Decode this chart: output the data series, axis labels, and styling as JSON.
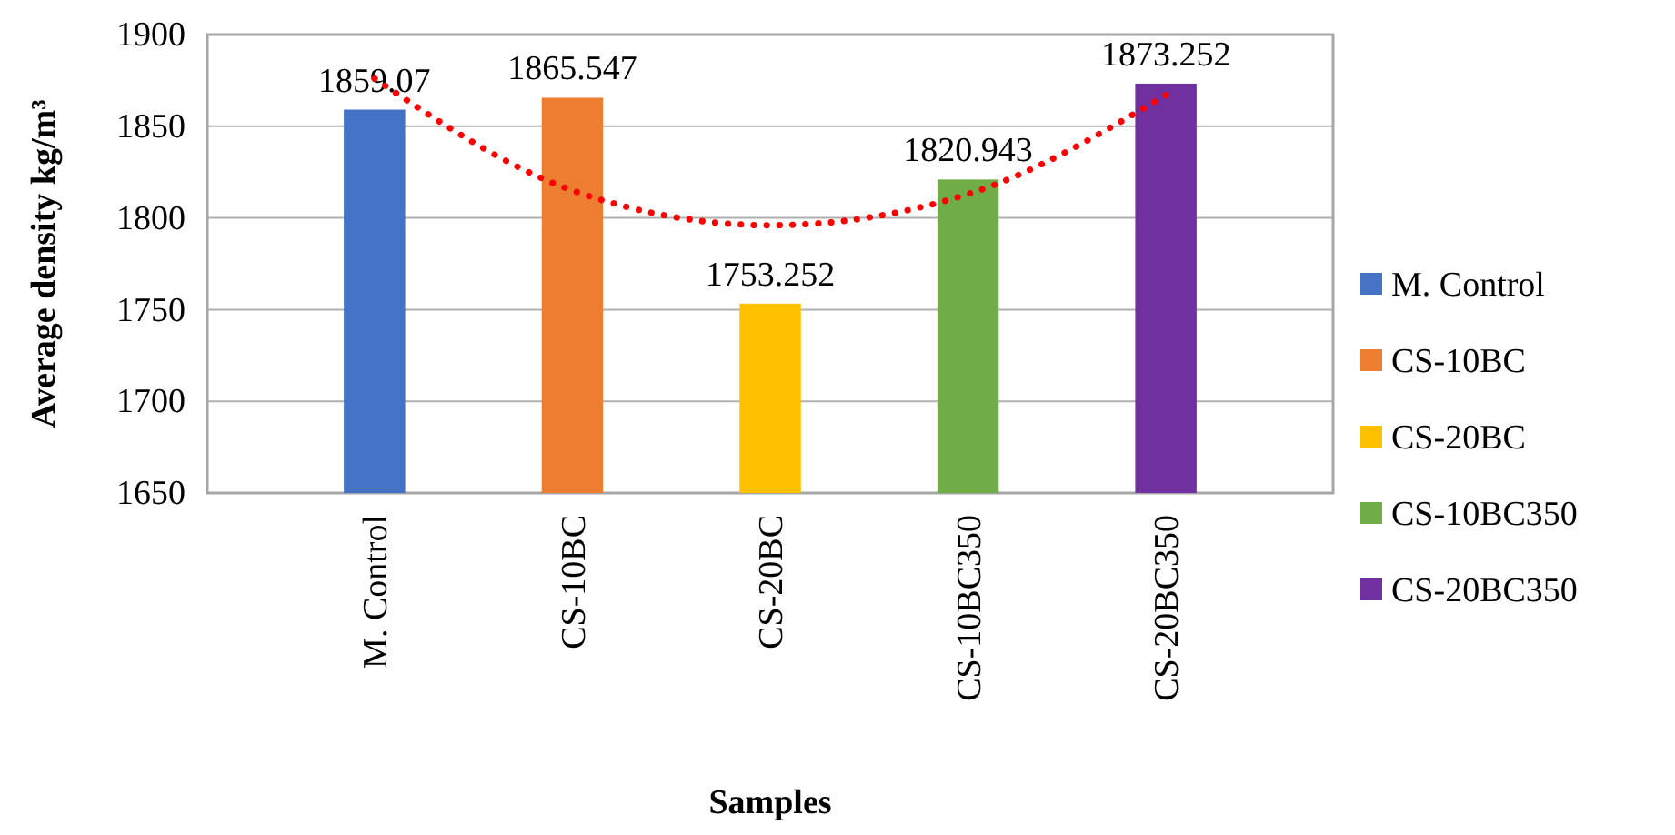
{
  "chart_data": {
    "type": "bar",
    "xlabel": "Samples",
    "ylabel": "Average density kg/m³",
    "categories": [
      "M. Control",
      "CS-10BC",
      "CS-20BC",
      "CS-10BC350",
      "CS-20BC350"
    ],
    "series": [
      {
        "name": "M. Control",
        "color": "#4472c4",
        "values": [
          1859.07,
          null,
          null,
          null,
          null
        ],
        "value_labels": [
          "1859.07",
          null,
          null,
          null,
          null
        ]
      },
      {
        "name": "CS-10BC",
        "color": "#ed7d31",
        "values": [
          null,
          1865.547,
          null,
          null,
          null
        ],
        "value_labels": [
          null,
          "1865.547",
          null,
          null,
          null
        ]
      },
      {
        "name": "CS-20BC",
        "color": "#ffc000",
        "values": [
          null,
          null,
          1753.252,
          null,
          null
        ],
        "value_labels": [
          null,
          null,
          "1753.252",
          null,
          null
        ]
      },
      {
        "name": "CS-10BC350",
        "color": "#70ad47",
        "values": [
          null,
          null,
          null,
          1820.943,
          null
        ],
        "value_labels": [
          null,
          null,
          null,
          "1820.943",
          null
        ]
      },
      {
        "name": "CS-20BC350",
        "color": "#7030a0",
        "values": [
          null,
          null,
          null,
          null,
          1873.252
        ],
        "value_labels": [
          null,
          null,
          null,
          null,
          "1873.252"
        ]
      },
      {
        "type": "line",
        "color": "#ff0000",
        "line_style": "dotted",
        "values": [
          1876,
          1815,
          1796,
          1813,
          1867
        ]
      }
    ],
    "ylim": [
      1650,
      1900
    ],
    "yticks": [
      1650,
      1700,
      1750,
      1800,
      1850,
      1900
    ],
    "grid": "y",
    "legend": "right"
  }
}
